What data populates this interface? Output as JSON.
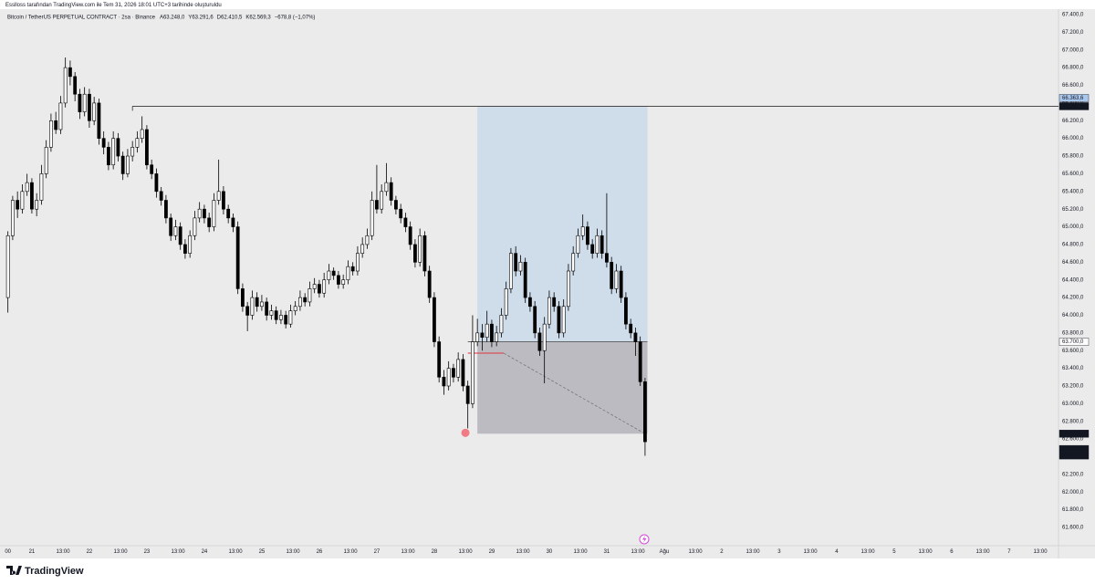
{
  "credit": "Esslloss tarafından TradingView.com ile Tem 31, 2026 18:01 UTC+3 tarihinde oluşturuldu",
  "chart_data": {
    "type": "candlestick",
    "symbol": "Bitcoin / TetherUS PERPETUAL CONTRACT · 2sa · Binance",
    "legend_values": [
      "A63.248,0",
      "Y63.291,6",
      "D62.410,5",
      "K62.569,3",
      "−678,8 (−1,07%)"
    ],
    "up_color": "#ffffff",
    "down_color": "#000000",
    "border_color": "#000000",
    "x": [
      -10,
      -8,
      -6,
      -4,
      -2,
      0,
      2,
      4,
      6,
      8,
      10,
      12,
      14,
      16,
      18,
      20,
      22,
      24,
      26,
      28,
      30,
      32,
      34,
      36,
      38,
      40,
      42,
      44,
      46,
      48,
      50,
      52,
      54,
      56,
      58,
      60,
      62,
      64,
      66,
      68,
      70,
      72,
      74,
      76,
      78,
      80,
      82,
      84,
      86,
      88,
      90,
      92,
      94,
      96,
      98,
      100,
      102,
      104,
      106,
      108,
      110,
      112,
      114,
      116,
      118,
      120,
      122,
      124,
      126,
      128,
      130,
      132,
      134,
      136,
      138,
      140,
      142,
      144,
      146,
      148,
      150,
      152,
      154,
      156,
      158,
      160,
      162,
      164,
      166,
      168,
      170,
      172,
      174,
      176,
      178,
      180,
      182,
      184,
      186,
      188,
      190,
      192,
      194,
      196,
      198,
      200,
      202,
      204,
      206,
      208,
      210,
      212,
      214,
      216,
      218,
      220,
      222,
      224,
      226,
      228,
      230,
      232,
      234,
      236,
      238,
      240,
      242,
      244,
      246,
      248,
      250,
      252,
      254,
      256
    ],
    "ohlc": [
      [
        64200,
        64950,
        64030,
        64900
      ],
      [
        64900,
        65350,
        64850,
        65300
      ],
      [
        65300,
        65400,
        65100,
        65200
      ],
      [
        65200,
        65480,
        65150,
        65400
      ],
      [
        65400,
        65600,
        65350,
        65500
      ],
      [
        65500,
        65550,
        65150,
        65200
      ],
      [
        65200,
        65380,
        65120,
        65300
      ],
      [
        65300,
        65700,
        65250,
        65600
      ],
      [
        65600,
        65980,
        65550,
        65900
      ],
      [
        65900,
        66280,
        65850,
        66200
      ],
      [
        66200,
        66300,
        66050,
        66100
      ],
      [
        66100,
        66480,
        66050,
        66400
      ],
      [
        66400,
        66915,
        66350,
        66800
      ],
      [
        66800,
        66880,
        66600,
        66700
      ],
      [
        66700,
        66750,
        66420,
        66500
      ],
      [
        66500,
        66560,
        66220,
        66300
      ],
      [
        66300,
        66580,
        66250,
        66500
      ],
      [
        66500,
        66560,
        66120,
        66200
      ],
      [
        66200,
        66470,
        66150,
        66400
      ],
      [
        66400,
        66450,
        65930,
        66000
      ],
      [
        66000,
        66080,
        65820,
        65900
      ],
      [
        65900,
        65960,
        65640,
        65700
      ],
      [
        65700,
        66080,
        65650,
        66000
      ],
      [
        66000,
        66060,
        65740,
        65800
      ],
      [
        65800,
        65850,
        65530,
        65600
      ],
      [
        65600,
        65880,
        65560,
        65800
      ],
      [
        65800,
        65970,
        65740,
        65900
      ],
      [
        65900,
        66080,
        65840,
        66000
      ],
      [
        66000,
        66250,
        65950,
        66100
      ],
      [
        66100,
        66150,
        65650,
        65700
      ],
      [
        65700,
        65760,
        65540,
        65600
      ],
      [
        65600,
        65660,
        65330,
        65400
      ],
      [
        65400,
        65450,
        65240,
        65300
      ],
      [
        65300,
        65360,
        65040,
        65100
      ],
      [
        65100,
        65150,
        64840,
        64900
      ],
      [
        64900,
        65080,
        64850,
        65000
      ],
      [
        65000,
        65050,
        64740,
        64800
      ],
      [
        64800,
        64860,
        64640,
        64700
      ],
      [
        64700,
        64960,
        64650,
        64900
      ],
      [
        64900,
        65180,
        64850,
        65100
      ],
      [
        65100,
        65280,
        65050,
        65200
      ],
      [
        65200,
        65250,
        65040,
        65100
      ],
      [
        65100,
        65160,
        64940,
        65000
      ],
      [
        65000,
        65380,
        64950,
        65300
      ],
      [
        65300,
        65760,
        65250,
        65400
      ],
      [
        65400,
        65460,
        65140,
        65200
      ],
      [
        65200,
        65250,
        65040,
        65100
      ],
      [
        65100,
        65150,
        64940,
        65000
      ],
      [
        65000,
        65060,
        64240,
        64300
      ],
      [
        64300,
        64360,
        64040,
        64100
      ],
      [
        64100,
        64150,
        63820,
        64000
      ],
      [
        64000,
        64280,
        63950,
        64200
      ],
      [
        64200,
        64260,
        64040,
        64100
      ],
      [
        64100,
        64230,
        64050,
        64150
      ],
      [
        64150,
        64200,
        63940,
        64000
      ],
      [
        64000,
        64120,
        63950,
        64050
      ],
      [
        64050,
        64100,
        63900,
        63950
      ],
      [
        63950,
        64060,
        63900,
        64000
      ],
      [
        64000,
        64050,
        63850,
        63900
      ],
      [
        63900,
        64120,
        63860,
        64050
      ],
      [
        64050,
        64160,
        64000,
        64100
      ],
      [
        64100,
        64280,
        64050,
        64200
      ],
      [
        64200,
        64250,
        64100,
        64150
      ],
      [
        64150,
        64380,
        64100,
        64300
      ],
      [
        64300,
        64420,
        64250,
        64350
      ],
      [
        64350,
        64400,
        64200,
        64250
      ],
      [
        64250,
        64480,
        64200,
        64400
      ],
      [
        64400,
        64580,
        64350,
        64500
      ],
      [
        64500,
        64540,
        64400,
        64450
      ],
      [
        64450,
        64500,
        64300,
        64350
      ],
      [
        64350,
        64460,
        64300,
        64400
      ],
      [
        64400,
        64620,
        64350,
        64550
      ],
      [
        64550,
        64600,
        64450,
        64500
      ],
      [
        64500,
        64780,
        64450,
        64700
      ],
      [
        64700,
        64880,
        64650,
        64800
      ],
      [
        64800,
        64980,
        64750,
        64900
      ],
      [
        64900,
        65400,
        64850,
        65300
      ],
      [
        65300,
        65700,
        65150,
        65200
      ],
      [
        65200,
        65480,
        65150,
        65400
      ],
      [
        65400,
        65720,
        65350,
        65500
      ],
      [
        65500,
        65560,
        65240,
        65300
      ],
      [
        65300,
        65350,
        65140,
        65200
      ],
      [
        65200,
        65260,
        65040,
        65100
      ],
      [
        65100,
        65160,
        64940,
        65000
      ],
      [
        65000,
        65060,
        64740,
        64800
      ],
      [
        64800,
        64860,
        64540,
        64600
      ],
      [
        64600,
        64980,
        64550,
        64900
      ],
      [
        64900,
        64950,
        64440,
        64500
      ],
      [
        64500,
        64560,
        64140,
        64200
      ],
      [
        64200,
        64260,
        63640,
        63700
      ],
      [
        63700,
        63760,
        63240,
        63300
      ],
      [
        63300,
        63380,
        63100,
        63200
      ],
      [
        63200,
        63480,
        63150,
        63400
      ],
      [
        63400,
        63450,
        63240,
        63300
      ],
      [
        63300,
        63580,
        63250,
        63500
      ],
      [
        63500,
        63560,
        63140,
        63200
      ],
      [
        63200,
        63260,
        62720,
        63000
      ],
      [
        63000,
        64000,
        62950,
        63700
      ],
      [
        63700,
        63960,
        63650,
        63800
      ],
      [
        63800,
        63900,
        63600,
        63750
      ],
      [
        63750,
        64050,
        63700,
        63900
      ],
      [
        63900,
        63950,
        63640,
        63700
      ],
      [
        63700,
        63880,
        63650,
        63800
      ],
      [
        63800,
        64080,
        63750,
        64000
      ],
      [
        64000,
        64380,
        63950,
        64300
      ],
      [
        64300,
        64760,
        64250,
        64700
      ],
      [
        64700,
        64780,
        64440,
        64500
      ],
      [
        64500,
        64680,
        64450,
        64600
      ],
      [
        64600,
        64650,
        64140,
        64200
      ],
      [
        64200,
        64260,
        64040,
        64100
      ],
      [
        64100,
        64160,
        63740,
        63800
      ],
      [
        63800,
        63860,
        63540,
        63600
      ],
      [
        63600,
        63980,
        63230,
        63900
      ],
      [
        63900,
        64280,
        63850,
        64200
      ],
      [
        64200,
        64260,
        64040,
        64100
      ],
      [
        64100,
        64160,
        63740,
        63800
      ],
      [
        63800,
        64180,
        63750,
        64100
      ],
      [
        64100,
        64580,
        64050,
        64500
      ],
      [
        64500,
        64780,
        64450,
        64700
      ],
      [
        64700,
        64980,
        64650,
        64900
      ],
      [
        64900,
        65140,
        64850,
        65000
      ],
      [
        65000,
        65060,
        64740,
        64800
      ],
      [
        64800,
        64860,
        64640,
        64700
      ],
      [
        64700,
        64980,
        64650,
        64900
      ],
      [
        64900,
        64960,
        64640,
        64700
      ],
      [
        64700,
        65380,
        64540,
        64600
      ],
      [
        64600,
        64660,
        64240,
        64300
      ],
      [
        64300,
        64580,
        64250,
        64500
      ],
      [
        64500,
        64560,
        64140,
        64200
      ],
      [
        64200,
        64260,
        63840,
        63900
      ],
      [
        63900,
        63960,
        63740,
        63800
      ],
      [
        63800,
        63860,
        63540,
        63700
      ],
      [
        63700,
        63760,
        63200,
        63248
      ],
      [
        63248,
        63291.6,
        62410.5,
        62569.3
      ]
    ],
    "xlim": [
      -13.3,
      428.6
    ],
    "ylim": [
      61394,
      67462
    ],
    "xticks": [
      {
        "value": -10,
        "label": "00"
      },
      {
        "value": 0,
        "label": "21"
      },
      {
        "value": 13,
        "label": "13:00"
      },
      {
        "value": 24,
        "label": "22"
      },
      {
        "value": 37,
        "label": "13:00"
      },
      {
        "value": 48,
        "label": "23"
      },
      {
        "value": 61,
        "label": "13:00"
      },
      {
        "value": 72,
        "label": "24"
      },
      {
        "value": 85,
        "label": "13:00"
      },
      {
        "value": 96,
        "label": "25"
      },
      {
        "value": 109,
        "label": "13:00"
      },
      {
        "value": 120,
        "label": "26"
      },
      {
        "value": 133,
        "label": "13:00"
      },
      {
        "value": 144,
        "label": "27"
      },
      {
        "value": 157,
        "label": "13:00"
      },
      {
        "value": 168,
        "label": "28"
      },
      {
        "value": 181,
        "label": "13:00"
      },
      {
        "value": 192,
        "label": "29"
      },
      {
        "value": 205,
        "label": "13:00"
      },
      {
        "value": 216,
        "label": "30"
      },
      {
        "value": 229,
        "label": "13:00"
      },
      {
        "value": 240,
        "label": "31"
      },
      {
        "value": 253,
        "label": "13:00"
      },
      {
        "value": 264,
        "label": "Ağu"
      },
      {
        "value": 277,
        "label": "13:00"
      },
      {
        "value": 288,
        "label": "2"
      },
      {
        "value": 301,
        "label": "13:00"
      },
      {
        "value": 312,
        "label": "3"
      },
      {
        "value": 325,
        "label": "13:00"
      },
      {
        "value": 336,
        "label": "4"
      },
      {
        "value": 349,
        "label": "13:00"
      },
      {
        "value": 360,
        "label": "5"
      },
      {
        "value": 373,
        "label": "13:00"
      },
      {
        "value": 384,
        "label": "6"
      },
      {
        "value": 397,
        "label": "13:00"
      },
      {
        "value": 408,
        "label": "7"
      },
      {
        "value": 421,
        "label": "13:00"
      }
    ],
    "yticks": [
      {
        "value": 61600,
        "label": "61.600,0"
      },
      {
        "value": 61800,
        "label": "61.800,0"
      },
      {
        "value": 62000,
        "label": "62.000,0"
      },
      {
        "value": 62200,
        "label": "62.200,0"
      },
      {
        "value": 62400,
        "label": "62.400,0"
      },
      {
        "value": 62600,
        "label": "62.600,0"
      },
      {
        "value": 62800,
        "label": "62.800,0"
      },
      {
        "value": 63000,
        "label": "63.000,0"
      },
      {
        "value": 63200,
        "label": "63.200,0"
      },
      {
        "value": 63400,
        "label": "63.400,0"
      },
      {
        "value": 63600,
        "label": "63.600,0"
      },
      {
        "value": 63800,
        "label": "63.800,0"
      },
      {
        "value": 64000,
        "label": "64.000,0"
      },
      {
        "value": 64200,
        "label": "64.200,0"
      },
      {
        "value": 64400,
        "label": "64.400,0"
      },
      {
        "value": 64600,
        "label": "64.600,0"
      },
      {
        "value": 64800,
        "label": "64.800,0"
      },
      {
        "value": 65000,
        "label": "65.000,0"
      },
      {
        "value": 65200,
        "label": "65.200,0"
      },
      {
        "value": 65400,
        "label": "65.400,0"
      },
      {
        "value": 65600,
        "label": "65.600,0"
      },
      {
        "value": 65800,
        "label": "65.800,0"
      },
      {
        "value": 66000,
        "label": "66.000,0"
      },
      {
        "value": 66200,
        "label": "66.200,0"
      },
      {
        "value": 66400,
        "label": "66.400,0"
      },
      {
        "value": 66600,
        "label": "66.600,0"
      },
      {
        "value": 66800,
        "label": "66.800,0"
      },
      {
        "value": 67000,
        "label": "67.000,0"
      },
      {
        "value": 67200,
        "label": "67.200,0"
      },
      {
        "value": 67400,
        "label": "67.400,0"
      }
    ],
    "grid": false,
    "hline": {
      "value": 66363.6,
      "start": 42
    },
    "position": {
      "start": 186,
      "end": 257,
      "entry": 63700,
      "entry_start": 182,
      "target": 66363.6,
      "stop": 62660.1,
      "profit_color": "#cfdcea",
      "loss_color": "#bcbbc1"
    },
    "red_line": {
      "x": [
        182,
        197
      ],
      "y": 63571
    },
    "dashed_line": {
      "x": [
        197,
        256
      ],
      "y": [
        63571,
        62660.1
      ]
    },
    "marker": {
      "x": 181,
      "y": 62670,
      "color": "#f07b84"
    },
    "price_labels": [
      {
        "value": 66363.6,
        "label": "66.363,6",
        "bg": "#aac7ee",
        "fg": "#131722",
        "shift": -9
      },
      {
        "value": 66363.6,
        "label": "66.363,6",
        "bg": "#131722",
        "fg": "#ffffff",
        "shift": 0
      },
      {
        "value": 63700,
        "label": "63.700,0",
        "bg": "#ffffff",
        "fg": "#131722",
        "shift": 0
      },
      {
        "value": 62660.1,
        "label": "62.660,1",
        "bg": "#131722",
        "fg": "#ffffff",
        "shift": 0
      },
      {
        "value": 62569.3,
        "label": "62.569,3",
        "sublabel": "58:47",
        "bg": "#131722",
        "fg": "#ffffff",
        "shift": 8
      }
    ]
  },
  "footer": {
    "brand": "TradingView"
  }
}
